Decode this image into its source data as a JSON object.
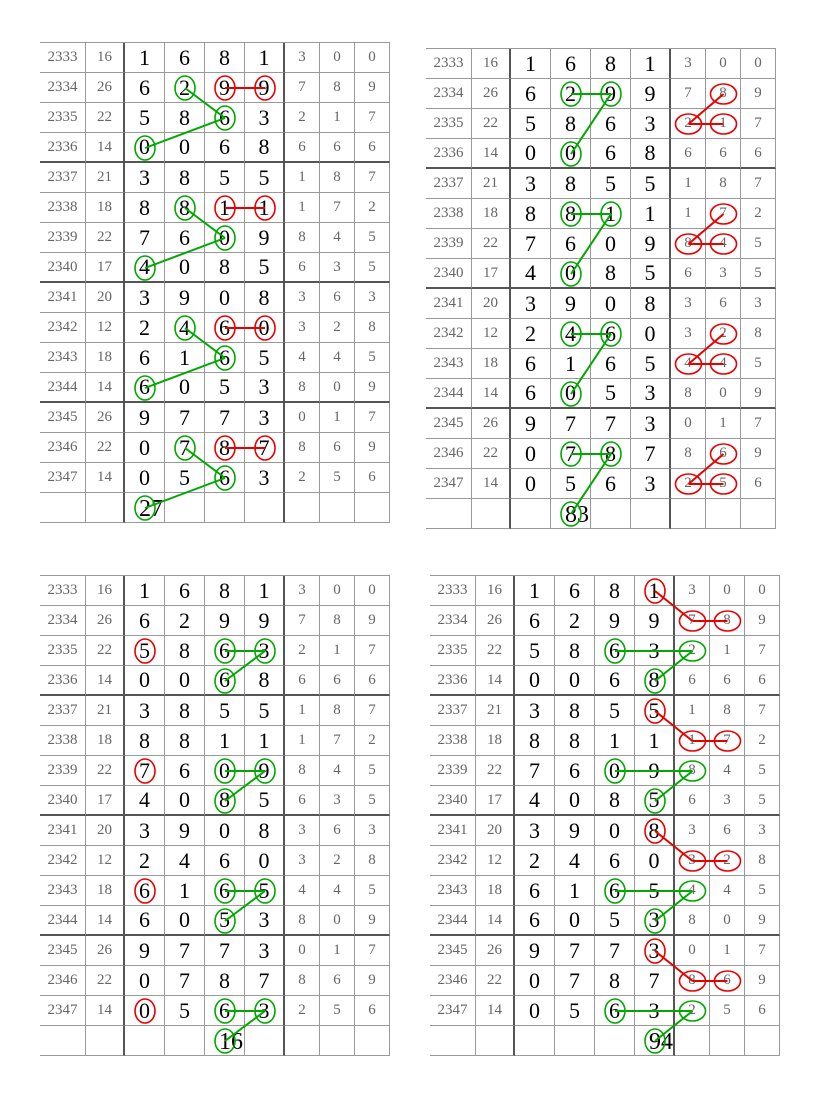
{
  "colors": {
    "green": "#00a800",
    "red": "#e80000",
    "grid_line": "#999999",
    "thick_line": "#555555"
  },
  "rows": [
    {
      "period": "2333",
      "sum": "16",
      "digits": [
        "1",
        "6",
        "8",
        "1"
      ],
      "small": [
        "3",
        "0",
        "0"
      ]
    },
    {
      "period": "2334",
      "sum": "26",
      "digits": [
        "6",
        "2",
        "9",
        "9"
      ],
      "small": [
        "7",
        "8",
        "9"
      ]
    },
    {
      "period": "2335",
      "sum": "22",
      "digits": [
        "5",
        "8",
        "6",
        "3"
      ],
      "small": [
        "2",
        "1",
        "7"
      ]
    },
    {
      "period": "2336",
      "sum": "14",
      "digits": [
        "0",
        "0",
        "6",
        "8"
      ],
      "small": [
        "6",
        "6",
        "6"
      ]
    },
    {
      "period": "2337",
      "sum": "21",
      "digits": [
        "3",
        "8",
        "5",
        "5"
      ],
      "small": [
        "1",
        "8",
        "7"
      ]
    },
    {
      "period": "2338",
      "sum": "18",
      "digits": [
        "8",
        "8",
        "1",
        "1"
      ],
      "small": [
        "1",
        "7",
        "2"
      ]
    },
    {
      "period": "2339",
      "sum": "22",
      "digits": [
        "7",
        "6",
        "0",
        "9"
      ],
      "small": [
        "8",
        "4",
        "5"
      ]
    },
    {
      "period": "2340",
      "sum": "17",
      "digits": [
        "4",
        "0",
        "8",
        "5"
      ],
      "small": [
        "6",
        "3",
        "5"
      ]
    },
    {
      "period": "2341",
      "sum": "20",
      "digits": [
        "3",
        "9",
        "0",
        "8"
      ],
      "small": [
        "3",
        "6",
        "3"
      ]
    },
    {
      "period": "2342",
      "sum": "12",
      "digits": [
        "2",
        "4",
        "6",
        "0"
      ],
      "small": [
        "3",
        "2",
        "8"
      ]
    },
    {
      "period": "2343",
      "sum": "18",
      "digits": [
        "6",
        "1",
        "6",
        "5"
      ],
      "small": [
        "4",
        "4",
        "5"
      ]
    },
    {
      "period": "2344",
      "sum": "14",
      "digits": [
        "6",
        "0",
        "5",
        "3"
      ],
      "small": [
        "8",
        "0",
        "9"
      ]
    },
    {
      "period": "2345",
      "sum": "26",
      "digits": [
        "9",
        "7",
        "7",
        "3"
      ],
      "small": [
        "0",
        "1",
        "7"
      ]
    },
    {
      "period": "2346",
      "sum": "22",
      "digits": [
        "0",
        "7",
        "8",
        "7"
      ],
      "small": [
        "8",
        "6",
        "9"
      ]
    },
    {
      "period": "2347",
      "sum": "14",
      "digits": [
        "0",
        "5",
        "6",
        "3"
      ],
      "small": [
        "2",
        "5",
        "6"
      ]
    }
  ],
  "panels": [
    {
      "id": "top-left",
      "prediction": "27",
      "prediction_column": 2,
      "circles": [
        {
          "row": 1,
          "col": 4,
          "color": "red"
        },
        {
          "row": 1,
          "col": 5,
          "color": "red"
        },
        {
          "row": 1,
          "col": 3,
          "color": "green"
        },
        {
          "row": 2,
          "col": 4,
          "color": "green"
        },
        {
          "row": 3,
          "col": 2,
          "color": "green"
        },
        {
          "row": 5,
          "col": 4,
          "color": "red"
        },
        {
          "row": 5,
          "col": 5,
          "color": "red"
        },
        {
          "row": 5,
          "col": 3,
          "color": "green"
        },
        {
          "row": 6,
          "col": 4,
          "color": "green"
        },
        {
          "row": 7,
          "col": 2,
          "color": "green"
        },
        {
          "row": 9,
          "col": 4,
          "color": "red"
        },
        {
          "row": 9,
          "col": 5,
          "color": "red"
        },
        {
          "row": 9,
          "col": 3,
          "color": "green"
        },
        {
          "row": 10,
          "col": 4,
          "color": "green"
        },
        {
          "row": 11,
          "col": 2,
          "color": "green"
        },
        {
          "row": 13,
          "col": 4,
          "color": "red"
        },
        {
          "row": 13,
          "col": 5,
          "color": "red"
        },
        {
          "row": 13,
          "col": 3,
          "color": "green"
        },
        {
          "row": 14,
          "col": 4,
          "color": "green"
        },
        {
          "row": 15,
          "col": 2,
          "color": "green"
        }
      ],
      "links": [
        {
          "from": [
            1,
            4
          ],
          "to": [
            1,
            5
          ],
          "color": "red"
        },
        {
          "from": [
            1,
            3
          ],
          "to": [
            2,
            4
          ],
          "color": "green"
        },
        {
          "from": [
            2,
            4
          ],
          "to": [
            3,
            2
          ],
          "color": "green"
        },
        {
          "from": [
            5,
            4
          ],
          "to": [
            5,
            5
          ],
          "color": "red"
        },
        {
          "from": [
            5,
            3
          ],
          "to": [
            6,
            4
          ],
          "color": "green"
        },
        {
          "from": [
            6,
            4
          ],
          "to": [
            7,
            2
          ],
          "color": "green"
        },
        {
          "from": [
            9,
            4
          ],
          "to": [
            9,
            5
          ],
          "color": "red"
        },
        {
          "from": [
            9,
            3
          ],
          "to": [
            10,
            4
          ],
          "color": "green"
        },
        {
          "from": [
            10,
            4
          ],
          "to": [
            11,
            2
          ],
          "color": "green"
        },
        {
          "from": [
            13,
            4
          ],
          "to": [
            13,
            5
          ],
          "color": "red"
        },
        {
          "from": [
            13,
            3
          ],
          "to": [
            14,
            4
          ],
          "color": "green"
        },
        {
          "from": [
            14,
            4
          ],
          "to": [
            15,
            2
          ],
          "color": "green"
        }
      ]
    },
    {
      "id": "top-right",
      "prediction": "83",
      "prediction_column": 3,
      "circles": [
        {
          "row": 1,
          "col": 3,
          "color": "green"
        },
        {
          "row": 1,
          "col": 4,
          "color": "green"
        },
        {
          "row": 3,
          "col": 3,
          "color": "green"
        },
        {
          "row": 1,
          "col": 7,
          "color": "red"
        },
        {
          "row": 2,
          "col": 6,
          "color": "red"
        },
        {
          "row": 2,
          "col": 7,
          "color": "red"
        },
        {
          "row": 5,
          "col": 3,
          "color": "green"
        },
        {
          "row": 5,
          "col": 4,
          "color": "green"
        },
        {
          "row": 7,
          "col": 3,
          "color": "green"
        },
        {
          "row": 5,
          "col": 7,
          "color": "red"
        },
        {
          "row": 6,
          "col": 6,
          "color": "red"
        },
        {
          "row": 6,
          "col": 7,
          "color": "red"
        },
        {
          "row": 9,
          "col": 3,
          "color": "green"
        },
        {
          "row": 9,
          "col": 4,
          "color": "green"
        },
        {
          "row": 11,
          "col": 3,
          "color": "green"
        },
        {
          "row": 9,
          "col": 7,
          "color": "red"
        },
        {
          "row": 10,
          "col": 6,
          "color": "red"
        },
        {
          "row": 10,
          "col": 7,
          "color": "red"
        },
        {
          "row": 13,
          "col": 3,
          "color": "green"
        },
        {
          "row": 13,
          "col": 4,
          "color": "green"
        },
        {
          "row": 15,
          "col": 3,
          "color": "green"
        },
        {
          "row": 13,
          "col": 7,
          "color": "red"
        },
        {
          "row": 14,
          "col": 6,
          "color": "red"
        },
        {
          "row": 14,
          "col": 7,
          "color": "red"
        }
      ],
      "links": [
        {
          "from": [
            1,
            3
          ],
          "to": [
            1,
            4
          ],
          "color": "green"
        },
        {
          "from": [
            1,
            4
          ],
          "to": [
            3,
            3
          ],
          "color": "green"
        },
        {
          "from": [
            1,
            7
          ],
          "to": [
            2,
            6
          ],
          "color": "red"
        },
        {
          "from": [
            2,
            6
          ],
          "to": [
            2,
            7
          ],
          "color": "red"
        },
        {
          "from": [
            5,
            3
          ],
          "to": [
            5,
            4
          ],
          "color": "green"
        },
        {
          "from": [
            5,
            4
          ],
          "to": [
            7,
            3
          ],
          "color": "green"
        },
        {
          "from": [
            5,
            7
          ],
          "to": [
            6,
            6
          ],
          "color": "red"
        },
        {
          "from": [
            6,
            6
          ],
          "to": [
            6,
            7
          ],
          "color": "red"
        },
        {
          "from": [
            9,
            3
          ],
          "to": [
            9,
            4
          ],
          "color": "green"
        },
        {
          "from": [
            9,
            4
          ],
          "to": [
            11,
            3
          ],
          "color": "green"
        },
        {
          "from": [
            9,
            7
          ],
          "to": [
            10,
            6
          ],
          "color": "red"
        },
        {
          "from": [
            10,
            6
          ],
          "to": [
            10,
            7
          ],
          "color": "red"
        },
        {
          "from": [
            13,
            3
          ],
          "to": [
            13,
            4
          ],
          "color": "green"
        },
        {
          "from": [
            13,
            4
          ],
          "to": [
            15,
            3
          ],
          "color": "green"
        },
        {
          "from": [
            13,
            7
          ],
          "to": [
            14,
            6
          ],
          "color": "red"
        },
        {
          "from": [
            14,
            6
          ],
          "to": [
            14,
            7
          ],
          "color": "red"
        }
      ]
    },
    {
      "id": "bottom-left",
      "prediction": "16",
      "prediction_column": 4,
      "circles": [
        {
          "row": 2,
          "col": 2,
          "color": "red"
        },
        {
          "row": 2,
          "col": 4,
          "color": "green"
        },
        {
          "row": 2,
          "col": 5,
          "color": "green"
        },
        {
          "row": 3,
          "col": 4,
          "color": "green"
        },
        {
          "row": 6,
          "col": 2,
          "color": "red"
        },
        {
          "row": 6,
          "col": 4,
          "color": "green"
        },
        {
          "row": 6,
          "col": 5,
          "color": "green"
        },
        {
          "row": 7,
          "col": 4,
          "color": "green"
        },
        {
          "row": 10,
          "col": 2,
          "color": "red"
        },
        {
          "row": 10,
          "col": 4,
          "color": "green"
        },
        {
          "row": 10,
          "col": 5,
          "color": "green"
        },
        {
          "row": 11,
          "col": 4,
          "color": "green"
        },
        {
          "row": 14,
          "col": 2,
          "color": "red"
        },
        {
          "row": 14,
          "col": 4,
          "color": "green"
        },
        {
          "row": 14,
          "col": 5,
          "color": "green"
        },
        {
          "row": 15,
          "col": 4,
          "color": "green"
        }
      ],
      "links": [
        {
          "from": [
            2,
            4
          ],
          "to": [
            2,
            5
          ],
          "color": "green"
        },
        {
          "from": [
            2,
            5
          ],
          "to": [
            3,
            4
          ],
          "color": "green"
        },
        {
          "from": [
            6,
            4
          ],
          "to": [
            6,
            5
          ],
          "color": "green"
        },
        {
          "from": [
            6,
            5
          ],
          "to": [
            7,
            4
          ],
          "color": "green"
        },
        {
          "from": [
            10,
            4
          ],
          "to": [
            10,
            5
          ],
          "color": "green"
        },
        {
          "from": [
            10,
            5
          ],
          "to": [
            11,
            4
          ],
          "color": "green"
        },
        {
          "from": [
            14,
            4
          ],
          "to": [
            14,
            5
          ],
          "color": "green"
        },
        {
          "from": [
            14,
            5
          ],
          "to": [
            15,
            4
          ],
          "color": "green"
        }
      ]
    },
    {
      "id": "bottom-right",
      "prediction": "94",
      "prediction_column": 5,
      "circles": [
        {
          "row": 0,
          "col": 5,
          "color": "red"
        },
        {
          "row": 1,
          "col": 6,
          "color": "red"
        },
        {
          "row": 1,
          "col": 7,
          "color": "red"
        },
        {
          "row": 2,
          "col": 4,
          "color": "green"
        },
        {
          "row": 2,
          "col": 6,
          "color": "green"
        },
        {
          "row": 3,
          "col": 5,
          "color": "green"
        },
        {
          "row": 4,
          "col": 5,
          "color": "red"
        },
        {
          "row": 5,
          "col": 6,
          "color": "red"
        },
        {
          "row": 5,
          "col": 7,
          "color": "red"
        },
        {
          "row": 6,
          "col": 4,
          "color": "green"
        },
        {
          "row": 6,
          "col": 6,
          "color": "green"
        },
        {
          "row": 7,
          "col": 5,
          "color": "green"
        },
        {
          "row": 8,
          "col": 5,
          "color": "red"
        },
        {
          "row": 9,
          "col": 6,
          "color": "red"
        },
        {
          "row": 9,
          "col": 7,
          "color": "red"
        },
        {
          "row": 10,
          "col": 4,
          "color": "green"
        },
        {
          "row": 10,
          "col": 6,
          "color": "green"
        },
        {
          "row": 11,
          "col": 5,
          "color": "green"
        },
        {
          "row": 12,
          "col": 5,
          "color": "red"
        },
        {
          "row": 13,
          "col": 6,
          "color": "red"
        },
        {
          "row": 13,
          "col": 7,
          "color": "red"
        },
        {
          "row": 14,
          "col": 4,
          "color": "green"
        },
        {
          "row": 14,
          "col": 6,
          "color": "green"
        },
        {
          "row": 15,
          "col": 5,
          "color": "green"
        }
      ],
      "links": [
        {
          "from": [
            0,
            5
          ],
          "to": [
            1,
            6
          ],
          "color": "red"
        },
        {
          "from": [
            1,
            6
          ],
          "to": [
            1,
            7
          ],
          "color": "red"
        },
        {
          "from": [
            2,
            4
          ],
          "to": [
            2,
            6
          ],
          "color": "green"
        },
        {
          "from": [
            2,
            6
          ],
          "to": [
            3,
            5
          ],
          "color": "green"
        },
        {
          "from": [
            4,
            5
          ],
          "to": [
            5,
            6
          ],
          "color": "red"
        },
        {
          "from": [
            5,
            6
          ],
          "to": [
            5,
            7
          ],
          "color": "red"
        },
        {
          "from": [
            6,
            4
          ],
          "to": [
            6,
            6
          ],
          "color": "green"
        },
        {
          "from": [
            6,
            6
          ],
          "to": [
            7,
            5
          ],
          "color": "green"
        },
        {
          "from": [
            8,
            5
          ],
          "to": [
            9,
            6
          ],
          "color": "red"
        },
        {
          "from": [
            9,
            6
          ],
          "to": [
            9,
            7
          ],
          "color": "red"
        },
        {
          "from": [
            10,
            4
          ],
          "to": [
            10,
            6
          ],
          "color": "green"
        },
        {
          "from": [
            10,
            6
          ],
          "to": [
            11,
            5
          ],
          "color": "green"
        },
        {
          "from": [
            12,
            5
          ],
          "to": [
            13,
            6
          ],
          "color": "red"
        },
        {
          "from": [
            13,
            6
          ],
          "to": [
            13,
            7
          ],
          "color": "red"
        },
        {
          "from": [
            14,
            4
          ],
          "to": [
            14,
            6
          ],
          "color": "green"
        },
        {
          "from": [
            14,
            6
          ],
          "to": [
            15,
            5
          ],
          "color": "green"
        }
      ]
    }
  ]
}
